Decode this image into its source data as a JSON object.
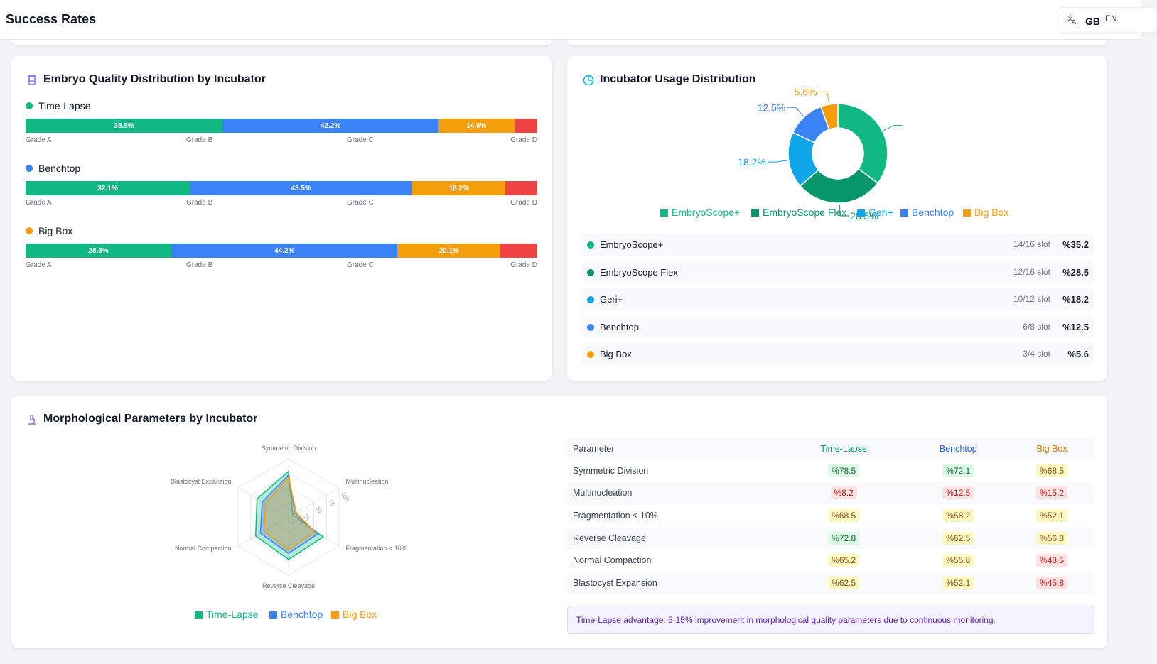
{
  "header": {
    "title": "Success Rates",
    "lang_code": "GB",
    "lang_label": "EN"
  },
  "colors": {
    "green": "#10b981",
    "dark_green": "#059669",
    "sky": "#0ea5e9",
    "blue": "#3b82f6",
    "orange": "#f59e0b",
    "red": "#ef4444"
  },
  "quality": {
    "title": "Embryo Quality Distribution by Incubator",
    "grade_labels": [
      "Grade A",
      "Grade B",
      "Grade C",
      "Grade D"
    ],
    "incubators": [
      {
        "name": "Time-Lapse",
        "color": "#10b981",
        "segments": [
          38.5,
          42.2,
          14.8,
          4.5
        ],
        "labels": [
          "38.5%",
          "42.2%",
          "14.8%",
          ""
        ]
      },
      {
        "name": "Benchtop",
        "color": "#3b82f6",
        "segments": [
          32.1,
          43.5,
          18.2,
          6.2
        ],
        "labels": [
          "32.1%",
          "43.5%",
          "18.2%",
          ""
        ]
      },
      {
        "name": "Big Box",
        "color": "#f59e0b",
        "segments": [
          28.5,
          44.2,
          20.1,
          7.2
        ],
        "labels": [
          "28.5%",
          "44.2%",
          "20.1%",
          ""
        ]
      }
    ]
  },
  "usage": {
    "title": "Incubator Usage Distribution",
    "chart_data": {
      "type": "pie",
      "categories": [
        "EmbryoScope+",
        "EmbryoScope Flex",
        "Geri+",
        "Benchtop",
        "Big Box"
      ],
      "values": [
        35.2,
        28.5,
        18.2,
        12.5,
        5.6
      ],
      "colors": [
        "#10b981",
        "#059669",
        "#0ea5e9",
        "#3b82f6",
        "#f59e0b"
      ],
      "slice_labels": [
        "",
        "28.5%",
        "18.2%",
        "12.5%",
        "5.6%"
      ],
      "legend": "bottom"
    },
    "rows": [
      {
        "name": "EmbryoScope+",
        "slots": "14/16 slot",
        "pct": "%35.2",
        "color": "#10b981"
      },
      {
        "name": "EmbryoScope Flex",
        "slots": "12/16 slot",
        "pct": "%28.5",
        "color": "#059669"
      },
      {
        "name": "Geri+",
        "slots": "10/12 slot",
        "pct": "%18.2",
        "color": "#0ea5e9"
      },
      {
        "name": "Benchtop",
        "slots": "6/8 slot",
        "pct": "%12.5",
        "color": "#3b82f6"
      },
      {
        "name": "Big Box",
        "slots": "3/4 slot",
        "pct": "%5.6",
        "color": "#f59e0b"
      }
    ]
  },
  "morph": {
    "title": "Morphological Parameters by Incubator",
    "chart_data": {
      "type": "radar",
      "axes": [
        "Symmetric Division",
        "Multinucleation",
        "Fragmentation < 10%",
        "Reverse Cleavage",
        "Normal Compaction",
        "Blastocyst Expansion"
      ],
      "ticks": [
        "0",
        "25",
        "50",
        "75",
        "100"
      ],
      "range": [
        0,
        100
      ],
      "series": [
        {
          "name": "Time-Lapse",
          "color": "#10b981",
          "values": [
            78.5,
            8.2,
            68.5,
            72.8,
            65.2,
            62.5
          ]
        },
        {
          "name": "Benchtop",
          "color": "#3b82f6",
          "values": [
            72.1,
            12.5,
            58.2,
            62.5,
            55.8,
            52.1
          ]
        },
        {
          "name": "Big Box",
          "color": "#f59e0b",
          "values": [
            68.5,
            15.2,
            52.1,
            56.8,
            48.5,
            45.8
          ]
        }
      ],
      "legend": "bottom"
    },
    "table": {
      "headers": [
        "Parameter",
        "Time-Lapse",
        "Benchtop",
        "Big Box"
      ],
      "header_colors": [
        "#374151",
        "#059669",
        "#2563eb",
        "#d97706"
      ],
      "rows": [
        {
          "param": "Symmetric Division",
          "values": [
            "%78.5",
            "%72.1",
            "%68.5"
          ],
          "tones": [
            "g",
            "g",
            "y"
          ]
        },
        {
          "param": "Multinucleation",
          "values": [
            "%8.2",
            "%12.5",
            "%15.2"
          ],
          "tones": [
            "r",
            "r",
            "r"
          ]
        },
        {
          "param": "Fragmentation < 10%",
          "values": [
            "%68.5",
            "%58.2",
            "%52.1"
          ],
          "tones": [
            "y",
            "y",
            "y"
          ]
        },
        {
          "param": "Reverse Cleavage",
          "values": [
            "%72.8",
            "%62.5",
            "%56.8"
          ],
          "tones": [
            "g",
            "y",
            "y"
          ]
        },
        {
          "param": "Normal Compaction",
          "values": [
            "%65.2",
            "%55.8",
            "%48.5"
          ],
          "tones": [
            "y",
            "y",
            "r"
          ]
        },
        {
          "param": "Blastocyst Expansion",
          "values": [
            "%62.5",
            "%52.1",
            "%45.8"
          ],
          "tones": [
            "y",
            "y",
            "r"
          ]
        }
      ]
    },
    "note": "Time-Lapse advantage: 5-15% improvement in morphological quality parameters due to continuous monitoring."
  }
}
